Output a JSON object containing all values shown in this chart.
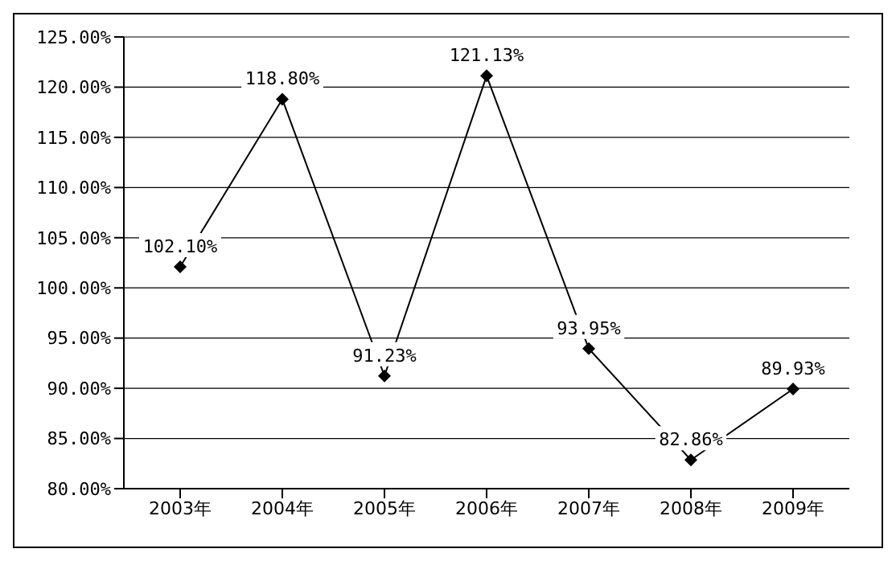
{
  "chart_data": {
    "type": "line",
    "categories": [
      "2003年",
      "2004年",
      "2005年",
      "2006年",
      "2007年",
      "2008年",
      "2009年"
    ],
    "series": [
      {
        "color": "#000000",
        "values": [
          102.1,
          118.8,
          91.23,
          121.13,
          93.95,
          82.86,
          89.93
        ],
        "value_labels": [
          "102.10%",
          "118.80%",
          "91.23%",
          "121.13%",
          "93.95%",
          "82.86%",
          "89.93%"
        ]
      }
    ],
    "ylim": [
      80,
      125
    ],
    "yticks": [
      {
        "value": 80,
        "label": "80.00%"
      },
      {
        "value": 85,
        "label": "85.00%"
      },
      {
        "value": 90,
        "label": "90.00%"
      },
      {
        "value": 95,
        "label": "95.00%"
      },
      {
        "value": 100,
        "label": "100.00%"
      },
      {
        "value": 105,
        "label": "105.00%"
      },
      {
        "value": 110,
        "label": "110.00%"
      },
      {
        "value": 115,
        "label": "115.00%"
      },
      {
        "value": 120,
        "label": "120.00%"
      },
      {
        "value": 125,
        "label": "125.00%"
      }
    ],
    "grid": "y",
    "marker": "diamond",
    "line_style": "solid"
  }
}
